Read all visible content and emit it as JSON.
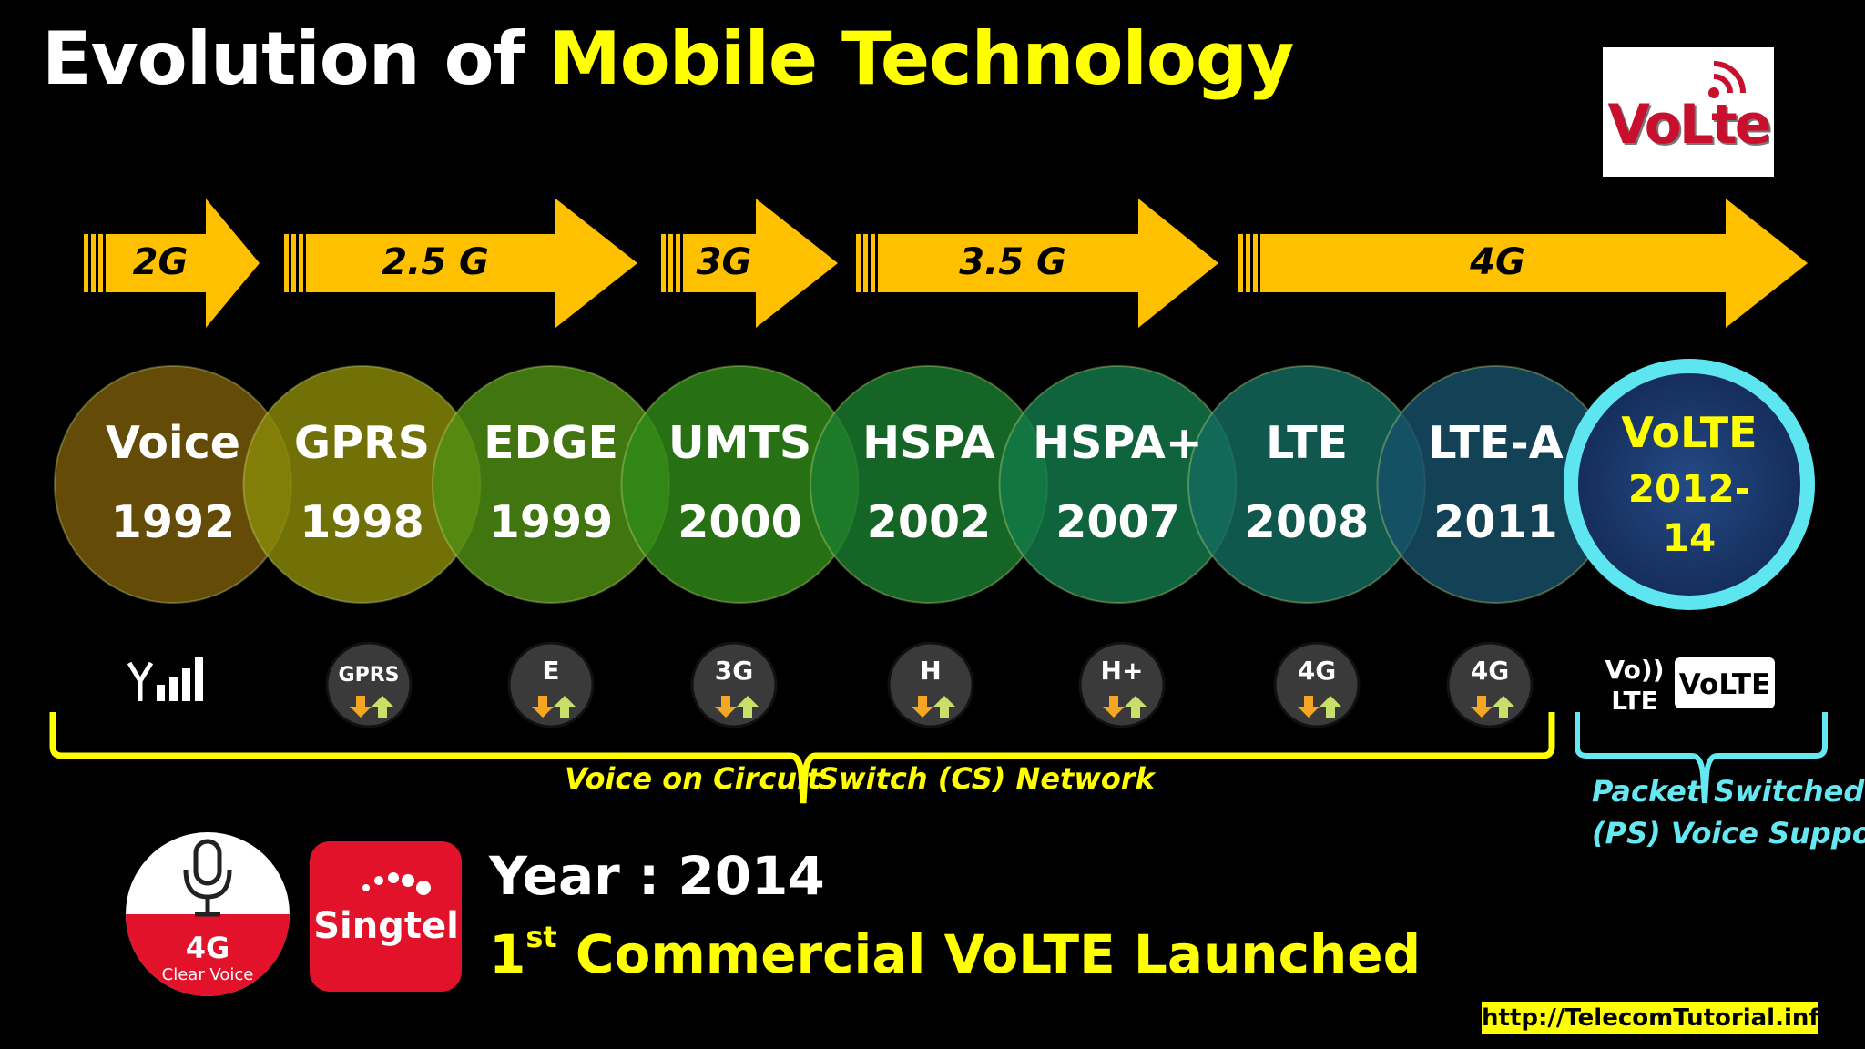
{
  "title": {
    "prefix": "Evolution of",
    "highlight": "Mobile Technology"
  },
  "volte_logo": {
    "text": "VoLte"
  },
  "generations": [
    {
      "label": "2G"
    },
    {
      "label": "2.5 G"
    },
    {
      "label": "3G"
    },
    {
      "label": "3.5 G"
    },
    {
      "label": "4G"
    }
  ],
  "technologies": [
    {
      "name": "Voice",
      "year": "1992",
      "color": "#7a5c0a",
      "icon": "signal-bars-icon"
    },
    {
      "name": "GPRS",
      "year": "1998",
      "color": "#8a8a08",
      "icon": "GPRS"
    },
    {
      "name": "EDGE",
      "year": "1999",
      "color": "#4f8f12",
      "icon": "E"
    },
    {
      "name": "UMTS",
      "year": "2000",
      "color": "#2f8a18",
      "icon": "3G"
    },
    {
      "name": "HSPA",
      "year": "2002",
      "color": "#1a7d2e",
      "icon": "H"
    },
    {
      "name": "HSPA+",
      "year": "2007",
      "color": "#127a4a",
      "icon": "H+"
    },
    {
      "name": "LTE",
      "year": "2008",
      "color": "#136a5e",
      "icon": "4G"
    },
    {
      "name": "LTE-A",
      "year": "2011",
      "color": "#17506a",
      "icon": "4G"
    }
  ],
  "volte": {
    "name": "VoLTE",
    "year_line1": "2012-",
    "year_line2": "14",
    "ring_color": "#5de6f0",
    "fill_color": "#1a3a6e"
  },
  "volte_icons": {
    "left_top": "Vo))",
    "left_bottom": "LTE",
    "badge": "VoLTE"
  },
  "cs_label": {
    "left": "Voice on Circuit",
    "right": "Switch (CS) Network"
  },
  "ps_label": {
    "line1_left": "Packet",
    "line1_right": "Switched",
    "line2": "(PS) Voice Support"
  },
  "clear_voice": {
    "top": "4G",
    "bottom": "Clear Voice"
  },
  "singtel": {
    "text": "Singtel"
  },
  "year_line": "Year : 2014",
  "launch": {
    "ordinal": "1",
    "suffix": "st",
    "text": "Commercial VoLTE Launched"
  },
  "url": "http://TelecomTutorial.info",
  "colors": {
    "accent": "#ffff00",
    "arrow": "#ffc000",
    "ps": "#66e8f2"
  }
}
